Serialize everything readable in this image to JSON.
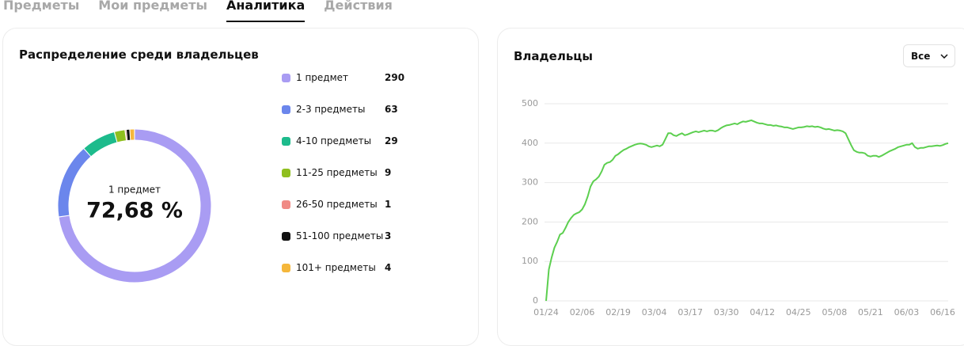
{
  "tabs": [
    "Предметы",
    "Мои предметы",
    "Аналитика",
    "Действия"
  ],
  "active_tab": 2,
  "filter": "Все",
  "chart_data": [
    {
      "type": "donut",
      "title": "Распределение среди владельцев",
      "categories": [
        "1 предмет",
        "2-3 предметы",
        "4-10 предметы",
        "11-25 предметы",
        "26-50 предметы",
        "51-100 предметы",
        "101+ предметы"
      ],
      "values": [
        290,
        63,
        29,
        9,
        1,
        3,
        4
      ],
      "colors": [
        "#a99cf3",
        "#6b86ec",
        "#1dbb8c",
        "#8fbf1f",
        "#f08a85",
        "#111111",
        "#f5b73b"
      ],
      "center_value": "72,68 %"
    },
    {
      "type": "line",
      "title": "Владельцы",
      "categories": [
        "01/24",
        null,
        null,
        null,
        null,
        null,
        null,
        null,
        null,
        null,
        null,
        null,
        null,
        "02/06",
        null,
        null,
        null,
        null,
        null,
        null,
        null,
        null,
        null,
        null,
        null,
        null,
        "02/19",
        null,
        null,
        null,
        null,
        null,
        null,
        null,
        null,
        null,
        null,
        null,
        null,
        "03/04",
        null,
        null,
        null,
        null,
        null,
        null,
        null,
        null,
        null,
        null,
        null,
        null,
        "03/17",
        null,
        null,
        null,
        null,
        null,
        null,
        null,
        null,
        null,
        null,
        null,
        null,
        "03/30",
        null,
        null,
        null,
        null,
        null,
        null,
        null,
        null,
        null,
        null,
        null,
        null,
        "04/12",
        null,
        null,
        null,
        null,
        null,
        null,
        null,
        null,
        null,
        null,
        null,
        null,
        "04/25",
        null,
        null,
        null,
        null,
        null,
        null,
        null,
        null,
        null,
        null,
        null,
        null,
        "05/08",
        null,
        null,
        null,
        null,
        null,
        null,
        null,
        null,
        null,
        null,
        null,
        null,
        "05/21",
        null,
        null,
        null,
        null,
        null,
        null,
        null,
        null,
        null,
        null,
        null,
        null,
        "06/03",
        null,
        null,
        null,
        null,
        null,
        null,
        null,
        null,
        null,
        null,
        null,
        null,
        "06/16",
        null,
        null
      ],
      "series": [
        {
          "color": "#5ccf4f",
          "values": [
            0,
            80,
            110,
            135,
            150,
            168,
            172,
            185,
            200,
            210,
            218,
            222,
            225,
            232,
            245,
            265,
            290,
            303,
            308,
            315,
            328,
            345,
            350,
            352,
            358,
            368,
            372,
            378,
            383,
            386,
            390,
            393,
            396,
            398,
            399,
            398,
            396,
            392,
            390,
            392,
            394,
            392,
            396,
            410,
            425,
            425,
            420,
            418,
            422,
            425,
            420,
            422,
            425,
            428,
            430,
            428,
            430,
            432,
            430,
            432,
            432,
            430,
            433,
            438,
            442,
            445,
            446,
            448,
            450,
            448,
            452,
            455,
            454,
            456,
            458,
            455,
            452,
            450,
            450,
            448,
            446,
            446,
            444,
            445,
            443,
            442,
            440,
            440,
            438,
            436,
            438,
            440,
            440,
            441,
            443,
            442,
            443,
            441,
            442,
            440,
            437,
            435,
            436,
            434,
            432,
            433,
            432,
            430,
            425,
            410,
            395,
            382,
            378,
            376,
            376,
            374,
            368,
            366,
            368,
            368,
            365,
            368,
            372,
            376,
            380,
            383,
            386,
            390,
            392,
            394,
            396,
            396,
            400,
            390,
            386,
            388,
            388,
            390,
            392,
            392,
            393,
            394,
            393,
            395,
            398,
            400
          ]
        }
      ],
      "ylim": [
        0,
        500
      ],
      "yticks": [
        0,
        100,
        200,
        300,
        400,
        500
      ],
      "grid": true
    }
  ]
}
